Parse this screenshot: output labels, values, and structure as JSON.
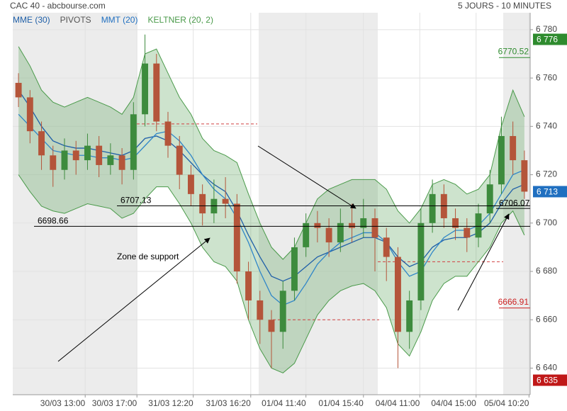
{
  "chart_data": {
    "type": "candlestick",
    "title": "CAC 40 - abcbourse.com",
    "subtitle": "5 JOURS - 10 MINUTES",
    "legend": [
      "MME (30)",
      "PIVOTS",
      "MMT (20)",
      "KELTNER (20, 2)"
    ],
    "legend_colors": [
      "#1f5fa8",
      "#555555",
      "#1f6fc0",
      "#4a9a4a"
    ],
    "up_color": "#3d8b3d",
    "down_color": "#b4553a",
    "open": [
      6758,
      6752,
      6738,
      6728,
      6722,
      6730,
      6726,
      6732,
      6724,
      6728,
      6722,
      6745,
      6766,
      6742,
      6732,
      6720,
      6712,
      6704,
      6710,
      6708,
      6680,
      6668,
      6660,
      6655,
      6672,
      6690,
      6700,
      6698,
      6692,
      6700,
      6698,
      6702,
      6694,
      6686,
      6655,
      6668,
      6700,
      6712,
      6702,
      6698,
      6694,
      6704,
      6716,
      6736,
      6726
    ],
    "high": [
      6762,
      6755,
      6742,
      6732,
      6735,
      6734,
      6737,
      6736,
      6733,
      6731,
      6750,
      6778,
      6770,
      6746,
      6736,
      6724,
      6716,
      6718,
      6719,
      6712,
      6684,
      6672,
      6664,
      6676,
      6694,
      6704,
      6705,
      6702,
      6706,
      6708,
      6710,
      6706,
      6698,
      6690,
      6672,
      6706,
      6718,
      6716,
      6706,
      6702,
      6708,
      6722,
      6744,
      6742,
      6730
    ],
    "low": [
      6748,
      6733,
      6722,
      6715,
      6718,
      6720,
      6722,
      6719,
      6720,
      6716,
      6718,
      6740,
      6738,
      6727,
      6714,
      6707,
      6699,
      6700,
      6702,
      6675,
      6660,
      6650,
      6640,
      6648,
      6668,
      6686,
      6692,
      6686,
      6688,
      6692,
      6694,
      6680,
      6676,
      6640,
      6648,
      6664,
      6696,
      6698,
      6693,
      6688,
      6690,
      6700,
      6712,
      6720,
      6710
    ],
    "close": [
      6752,
      6738,
      6728,
      6722,
      6730,
      6726,
      6732,
      6724,
      6728,
      6722,
      6745,
      6766,
      6742,
      6732,
      6720,
      6712,
      6704,
      6710,
      6708,
      6680,
      6668,
      6660,
      6655,
      6672,
      6690,
      6700,
      6698,
      6692,
      6700,
      6698,
      6702,
      6694,
      6686,
      6655,
      6668,
      6700,
      6712,
      6702,
      6698,
      6694,
      6704,
      6716,
      6736,
      6726,
      6713
    ],
    "series": [
      {
        "name": "KELTNER (20, 2)",
        "color": "#4a9a4a",
        "values": [
          6773,
          6765,
          6755,
          6750,
          6748,
          6750,
          6752,
          6750,
          6748,
          6745,
          6752,
          6770,
          6772,
          6762,
          6752,
          6745,
          6735,
          6730,
          6728,
          6725,
          6712,
          6700,
          6690,
          6685,
          6690,
          6700,
          6710,
          6714,
          6716,
          6718,
          6718,
          6718,
          6714,
          6705,
          6700,
          6706,
          6716,
          6718,
          6716,
          6712,
          6714,
          6720,
          6740,
          6755,
          6744
        ]
      },
      {
        "name": "KELTNER (20, 2)",
        "color": "#4a9a4a",
        "values": [
          6720,
          6713,
          6707,
          6705,
          6704,
          6706,
          6708,
          6707,
          6706,
          6702,
          6704,
          6710,
          6715,
          6715,
          6708,
          6700,
          6690,
          6684,
          6682,
          6676,
          6660,
          6648,
          6640,
          6638,
          6642,
          6652,
          6662,
          6668,
          6672,
          6674,
          6675,
          6672,
          6665,
          6650,
          6645,
          6655,
          6668,
          6675,
          6678,
          6678,
          6684,
          6690,
          6700,
          6705,
          6695
        ]
      },
      {
        "name": "MME (30)",
        "color": "#1f5fa8",
        "values": [
          6755,
          6748,
          6740,
          6734,
          6732,
          6731,
          6731,
          6730,
          6729,
          6728,
          6730,
          6735,
          6736,
          6734,
          6730,
          6725,
          6720,
          6716,
          6713,
          6705,
          6695,
          6686,
          6678,
          6676,
          6678,
          6682,
          6686,
          6688,
          6690,
          6692,
          6694,
          6694,
          6692,
          6686,
          6682,
          6684,
          6690,
          6693,
          6694,
          6694,
          6696,
          6700,
          6708,
          6714,
          6716
        ]
      },
      {
        "name": "MMT (20)",
        "color": "#2f86c8",
        "values": [
          6745,
          6740,
          6735,
          6730,
          6729,
          6728,
          6728,
          6727,
          6727,
          6726,
          6727,
          6732,
          6737,
          6738,
          6734,
          6728,
          6720,
          6714,
          6710,
          6702,
          6692,
          6680,
          6670,
          6666,
          6668,
          6675,
          6683,
          6688,
          6692,
          6694,
          6696,
          6696,
          6692,
          6684,
          6678,
          6680,
          6688,
          6694,
          6697,
          6697,
          6699,
          6704,
          6712,
          6720,
          6722
        ]
      }
    ],
    "ylim": [
      6629,
      6787
    ],
    "yticks": [
      6640,
      6660,
      6680,
      6700,
      6720,
      6740,
      6760,
      6780
    ],
    "yticks_labels": [
      "6 640",
      "6 660",
      "6 680",
      "6 700",
      "6 720",
      "6 740",
      "6 760",
      "6 780"
    ],
    "xlim": [
      -0.5,
      44.5
    ],
    "xticks": [
      {
        "value": 5.8,
        "label": "30/03 13:00"
      },
      {
        "value": 10.3,
        "label": "30/03 17:00"
      },
      {
        "value": 15.2,
        "label": "31/03 12:20"
      },
      {
        "value": 20.2,
        "label": "31/03 16:20"
      },
      {
        "value": 25.0,
        "label": "01/04 11:40"
      },
      {
        "value": 30.0,
        "label": "01/04 15:40"
      },
      {
        "value": 34.9,
        "label": "04/04 11:00"
      },
      {
        "value": 39.8,
        "label": "04/04 15:00"
      },
      {
        "value": 44.4,
        "label": "05/04 10:20"
      }
    ],
    "grid": true,
    "pivots": [
      6741,
      6660,
      6684
    ],
    "pivot_color": "#d04040",
    "levels": [
      6707.13,
      6698.66,
      6706.07
    ],
    "band_labels": [
      {
        "value": 6770.52,
        "label": "6770.52",
        "color": "#2e8b2e"
      },
      {
        "value": 6666.91,
        "label": "6666.91",
        "color": "#cc2222"
      }
    ],
    "price_boxes": [
      {
        "value": 6776,
        "label": "6 776",
        "color": "#2e8b2e"
      },
      {
        "value": 6713,
        "label": "6 713",
        "color": "#1f6fc0"
      },
      {
        "value": 6635,
        "label": "6 635",
        "color": "#c01818"
      }
    ],
    "annotation": "Zone de support"
  }
}
